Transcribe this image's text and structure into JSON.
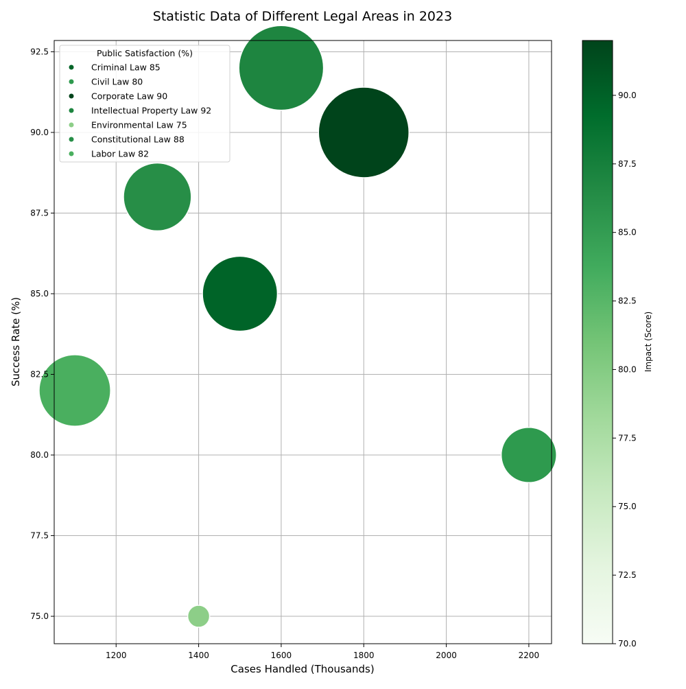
{
  "chart_data": {
    "type": "scatter",
    "title": "Statistic Data of Different Legal Areas in 2023",
    "xlabel": "Cases Handled (Thousands)",
    "ylabel": "Success Rate (%)",
    "xlim": [
      1050,
      2255
    ],
    "ylim": [
      74.15,
      92.85
    ],
    "xticks": [
      1200,
      1400,
      1600,
      1800,
      2000,
      2200
    ],
    "yticks": [
      75.0,
      77.5,
      80.0,
      82.5,
      85.0,
      87.5,
      90.0,
      92.5
    ],
    "grid": true,
    "legend_title": "Public Satisfaction (%)",
    "legend_position": "upper-left",
    "colorbar": {
      "label": "Impact (Score)",
      "range": [
        70,
        92
      ],
      "ticks": [
        70.0,
        72.5,
        75.0,
        77.5,
        80.0,
        82.5,
        85.0,
        87.5,
        90.0
      ],
      "colormap": "Greens"
    },
    "points": [
      {
        "label": "Criminal Law 85",
        "x": 1500,
        "y": 85,
        "impact": 90,
        "size_value": 85,
        "color": "#006428"
      },
      {
        "label": "Civil Law 80",
        "x": 2200,
        "y": 80,
        "impact": 85,
        "size_value": 80,
        "color": "#2e9a4e"
      },
      {
        "label": "Corporate Law 90",
        "x": 1800,
        "y": 90,
        "impact": 92,
        "size_value": 90,
        "color": "#00441b"
      },
      {
        "label": "Intellectual Property Law 92",
        "x": 1600,
        "y": 92,
        "impact": 87,
        "size_value": 88,
        "color": "#1e8540"
      },
      {
        "label": "Environmental Law 75",
        "x": 1400,
        "y": 75,
        "impact": 80,
        "size_value": 75,
        "color": "#8dce88"
      },
      {
        "label": "Constitutional Law 88",
        "x": 1300,
        "y": 88,
        "impact": 86,
        "size_value": 83,
        "color": "#278e47"
      },
      {
        "label": "Labor Law 82",
        "x": 1100,
        "y": 82,
        "impact": 83,
        "size_value": 84,
        "color": "#4aaf5f"
      }
    ]
  }
}
